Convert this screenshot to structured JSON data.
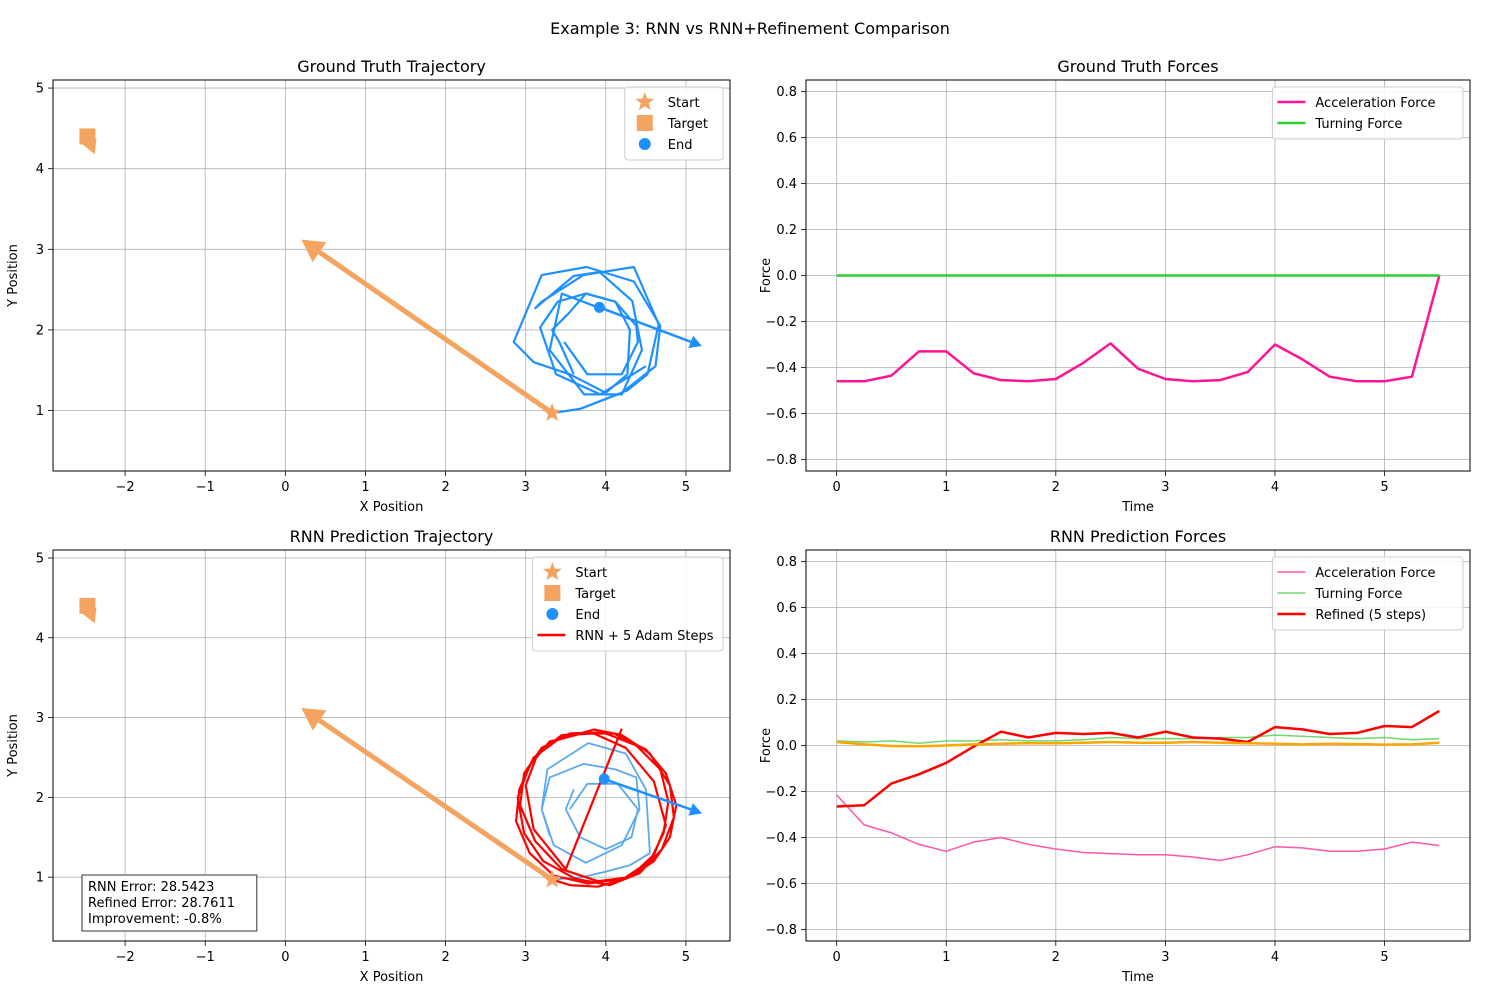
{
  "figure_title": "Example 3: RNN vs RNN+Refinement Comparison",
  "colors": {
    "orange": "#f4a460",
    "blue": "#1e90ff",
    "light_blue": "#5aaaf0",
    "red": "#ff0000",
    "pink": "#ff1493",
    "light_pink": "#ff55aa",
    "green": "#32cd32",
    "light_green": "#6fd86f",
    "dark_orange": "#ffa500",
    "grid": "#b0b0b0"
  },
  "chart_data": [
    {
      "type": "line",
      "title": "Ground Truth Trajectory",
      "xlabel": "X Position",
      "ylabel": "Y Position",
      "xlim": [
        -2.9,
        5.55
      ],
      "ylim": [
        0.25,
        5.1
      ],
      "xticks": [
        -2,
        -1,
        0,
        1,
        2,
        3,
        4,
        5
      ],
      "yticks": [
        1,
        2,
        3,
        4,
        5
      ],
      "grid": true,
      "legend": {
        "placement": "top-right",
        "entries": [
          {
            "label": "Start",
            "marker": "star",
            "color": "#f4a460"
          },
          {
            "label": "Target",
            "marker": "square",
            "color": "#f4a460"
          },
          {
            "label": "End",
            "marker": "circle",
            "color": "#1e90ff"
          }
        ]
      },
      "markers": {
        "start": {
          "x": 3.33,
          "y": 0.97
        },
        "target": {
          "x": -2.47,
          "y": 4.4,
          "arrow_to": {
            "x": -2.38,
            "y": 4.18
          }
        },
        "end": {
          "x": 3.92,
          "y": 2.28,
          "arrow_to": {
            "x": 5.2,
            "y": 1.8
          }
        },
        "start_arrow_to": {
          "x": 0.2,
          "y": 3.12
        }
      },
      "series": [
        {
          "style": "solid",
          "color": "#1e90ff",
          "width": 2.2,
          "x": [
            3.33,
            3.68,
            4.27,
            4.52,
            4.66,
            4.35,
            3.72,
            3.2,
            3.12,
            3.6,
            3.92,
            4.33,
            4.45,
            4.2,
            3.73,
            3.3,
            3.45,
            3.9
          ],
          "y": [
            0.97,
            1.02,
            1.25,
            1.45,
            2.07,
            2.78,
            2.68,
            2.35,
            2.27,
            2.67,
            2.72,
            2.36,
            1.75,
            1.2,
            1.2,
            1.75,
            2.45,
            2.28
          ]
        },
        {
          "style": "solid",
          "color": "#1e90ff",
          "width": 2.2,
          "x": [
            3.68,
            4.2,
            4.62,
            4.68,
            4.35,
            3.76,
            3.2,
            2.85,
            3.1,
            3.55,
            4.0,
            4.27,
            4.3,
            4.12,
            3.75,
            3.4,
            3.18,
            3.38,
            3.93,
            4.5
          ],
          "y": [
            1.02,
            1.22,
            1.55,
            2.05,
            2.6,
            2.78,
            2.68,
            1.85,
            1.6,
            1.45,
            1.22,
            1.45,
            2.0,
            2.35,
            2.45,
            2.35,
            2.03,
            1.45,
            1.2,
            1.55
          ]
        },
        {
          "style": "solid",
          "color": "#1e90ff",
          "width": 2.2,
          "x": [
            3.6,
            3.42,
            3.33,
            3.53,
            3.75,
            4.12,
            4.38,
            4.4,
            4.2,
            3.77,
            3.48
          ],
          "y": [
            1.45,
            1.85,
            2.0,
            2.2,
            2.45,
            2.35,
            2.05,
            1.85,
            1.45,
            1.45,
            1.85
          ]
        }
      ]
    },
    {
      "type": "line",
      "title": "Ground Truth Forces",
      "xlabel": "Time",
      "ylabel": "Force",
      "xlim": [
        -0.28,
        5.78
      ],
      "ylim": [
        -0.85,
        0.85
      ],
      "xticks": [
        0,
        1,
        2,
        3,
        4,
        5
      ],
      "yticks": [
        -0.8,
        -0.6,
        -0.4,
        -0.2,
        0.0,
        0.2,
        0.4,
        0.6,
        0.8
      ],
      "grid": true,
      "legend": {
        "placement": "top-right"
      },
      "x": [
        0,
        0.25,
        0.5,
        0.75,
        1.0,
        1.25,
        1.5,
        1.75,
        2.0,
        2.25,
        2.5,
        2.75,
        3.0,
        3.25,
        3.5,
        3.75,
        4.0,
        4.25,
        4.5,
        4.75,
        5.0,
        5.25,
        5.5
      ],
      "series": [
        {
          "name": "Acceleration Force",
          "color": "#ff1493",
          "width": 2.5,
          "values": [
            -0.46,
            -0.46,
            -0.435,
            -0.33,
            -0.33,
            -0.425,
            -0.455,
            -0.46,
            -0.45,
            -0.38,
            -0.295,
            -0.405,
            -0.45,
            -0.46,
            -0.455,
            -0.42,
            -0.3,
            -0.365,
            -0.44,
            -0.46,
            -0.46,
            -0.44,
            0.0
          ]
        },
        {
          "name": "Turning Force",
          "color": "#32cd32",
          "width": 2.5,
          "values": [
            0,
            0,
            0,
            0,
            0,
            0,
            0,
            0,
            0,
            0,
            0,
            0,
            0,
            0,
            0,
            0,
            0,
            0,
            0,
            0,
            0,
            0,
            0
          ]
        }
      ]
    },
    {
      "type": "line",
      "title": "RNN Prediction Trajectory",
      "xlabel": "X Position",
      "ylabel": "Y Position",
      "xlim": [
        -2.9,
        5.55
      ],
      "ylim": [
        0.2,
        5.1
      ],
      "xticks": [
        -2,
        -1,
        0,
        1,
        2,
        3,
        4,
        5
      ],
      "yticks": [
        1,
        2,
        3,
        4,
        5
      ],
      "grid": true,
      "legend": {
        "placement": "top-right",
        "entries": [
          {
            "label": "Start",
            "marker": "star",
            "color": "#f4a460"
          },
          {
            "label": "Target",
            "marker": "square",
            "color": "#f4a460"
          },
          {
            "label": "End",
            "marker": "circle",
            "color": "#1e90ff"
          },
          {
            "label": "RNN + 5 Adam Steps",
            "marker": "line",
            "color": "#ff0000"
          }
        ]
      },
      "markers": {
        "start": {
          "x": 3.33,
          "y": 0.97
        },
        "target": {
          "x": -2.47,
          "y": 4.4,
          "arrow_to": {
            "x": -2.38,
            "y": 4.18
          }
        },
        "end": {
          "x": 3.98,
          "y": 2.23,
          "arrow_to": {
            "x": 5.2,
            "y": 1.8
          }
        },
        "start_arrow_to": {
          "x": 0.2,
          "y": 3.12
        }
      },
      "annotation": {
        "lines": [
          "RNN Error: 28.5423",
          "Refined Error: 28.7611",
          "Improvement: -0.8%"
        ],
        "placement": "bottom-left"
      },
      "series": [
        {
          "style": "solid",
          "color": "#5aaaf0",
          "width": 1.8,
          "x": [
            3.33,
            3.7,
            4.0,
            4.3,
            4.55,
            4.5,
            4.25,
            3.78,
            3.27,
            3.2,
            3.35,
            3.75,
            4.2,
            4.42,
            4.38,
            4.12,
            3.72,
            3.3,
            3.2,
            3.3
          ],
          "y": [
            0.97,
            1.0,
            1.07,
            1.15,
            1.3,
            2.1,
            2.55,
            2.68,
            2.35,
            1.85,
            1.4,
            1.18,
            1.4,
            1.85,
            2.25,
            2.35,
            2.42,
            2.25,
            1.85,
            1.52
          ]
        },
        {
          "style": "solid",
          "color": "#5aaaf0",
          "width": 1.8,
          "x": [
            3.55,
            3.77,
            4.15,
            4.4,
            4.32,
            4.0,
            3.68,
            3.5,
            3.6
          ],
          "y": [
            1.85,
            2.17,
            2.17,
            1.85,
            1.5,
            1.35,
            1.5,
            1.85,
            2.1
          ]
        },
        {
          "style": "solid",
          "color": "#ff0000",
          "width": 2.2,
          "x": [
            3.33,
            3.55,
            3.9,
            4.3,
            4.6,
            4.8,
            4.88,
            4.75,
            4.5,
            4.1,
            3.7,
            3.3,
            3.05,
            2.9,
            2.98,
            3.22,
            3.62,
            4.05,
            4.42,
            4.7,
            4.85,
            4.8,
            4.55,
            4.2,
            3.85,
            3.4,
            3.1,
            2.92,
            2.88,
            3.05,
            3.35,
            3.78,
            4.22,
            4.55,
            4.72,
            4.78,
            4.68,
            4.38,
            3.95,
            3.55,
            3.2,
            2.98,
            2.93,
            3.12,
            3.45,
            3.9,
            4.3,
            4.6,
            4.75,
            4.6,
            4.25,
            3.85,
            3.45,
            3.15,
            3.0,
            3.1,
            3.5,
            4.2
          ],
          "y": [
            0.97,
            0.9,
            0.88,
            1.0,
            1.2,
            1.5,
            1.9,
            2.3,
            2.6,
            2.8,
            2.8,
            2.7,
            2.4,
            2.0,
            1.55,
            1.2,
            0.98,
            0.9,
            1.05,
            1.35,
            1.75,
            2.15,
            2.55,
            2.78,
            2.85,
            2.72,
            2.5,
            2.1,
            1.7,
            1.3,
            1.02,
            0.92,
            0.98,
            1.2,
            1.55,
            1.95,
            2.35,
            2.65,
            2.82,
            2.8,
            2.62,
            2.3,
            1.9,
            1.45,
            1.1,
            0.95,
            1.0,
            1.28,
            1.65,
            2.2,
            2.62,
            2.8,
            2.78,
            2.55,
            2.15,
            1.6,
            1.1,
            2.86
          ]
        }
      ]
    },
    {
      "type": "line",
      "title": "RNN Prediction Forces",
      "xlabel": "Time",
      "ylabel": "Force",
      "xlim": [
        -0.28,
        5.78
      ],
      "ylim": [
        -0.85,
        0.85
      ],
      "xticks": [
        0,
        1,
        2,
        3,
        4,
        5
      ],
      "yticks": [
        -0.8,
        -0.6,
        -0.4,
        -0.2,
        0.0,
        0.2,
        0.4,
        0.6,
        0.8
      ],
      "grid": true,
      "legend": {
        "placement": "top-right"
      },
      "x": [
        0,
        0.25,
        0.5,
        0.75,
        1.0,
        1.25,
        1.5,
        1.75,
        2.0,
        2.25,
        2.5,
        2.75,
        3.0,
        3.25,
        3.5,
        3.75,
        4.0,
        4.25,
        4.5,
        4.75,
        5.0,
        5.25,
        5.5
      ],
      "series": [
        {
          "name": "Acceleration Force",
          "color": "#ff55aa",
          "width": 1.5,
          "values": [
            -0.215,
            -0.345,
            -0.38,
            -0.43,
            -0.46,
            -0.42,
            -0.4,
            -0.43,
            -0.45,
            -0.465,
            -0.47,
            -0.475,
            -0.475,
            -0.485,
            -0.5,
            -0.475,
            -0.44,
            -0.445,
            -0.46,
            -0.46,
            -0.45,
            -0.42,
            -0.435
          ]
        },
        {
          "name": "Turning Force",
          "color": "#6fd86f",
          "width": 1.5,
          "values": [
            0.02,
            0.015,
            0.02,
            0.01,
            0.02,
            0.02,
            0.025,
            0.02,
            0.02,
            0.025,
            0.035,
            0.03,
            0.03,
            0.03,
            0.035,
            0.035,
            0.045,
            0.04,
            0.035,
            0.03,
            0.035,
            0.025,
            0.03
          ]
        },
        {
          "name": "Refined (5 steps)",
          "color": "#ff0000",
          "width": 2.5,
          "values": [
            -0.265,
            -0.26,
            -0.165,
            -0.125,
            -0.075,
            -0.005,
            0.06,
            0.035,
            0.055,
            0.05,
            0.055,
            0.035,
            0.06,
            0.035,
            0.03,
            0.015,
            0.08,
            0.07,
            0.05,
            0.055,
            0.085,
            0.08,
            0.15
          ]
        },
        {
          "color": "#ffa500",
          "width": 2.5,
          "values": [
            0.015,
            0.005,
            -0.002,
            -0.003,
            0.0,
            0.005,
            0.008,
            0.01,
            0.01,
            0.012,
            0.015,
            0.012,
            0.012,
            0.015,
            0.012,
            0.01,
            0.008,
            0.005,
            0.008,
            0.006,
            0.004,
            0.005,
            0.012
          ]
        }
      ]
    }
  ]
}
